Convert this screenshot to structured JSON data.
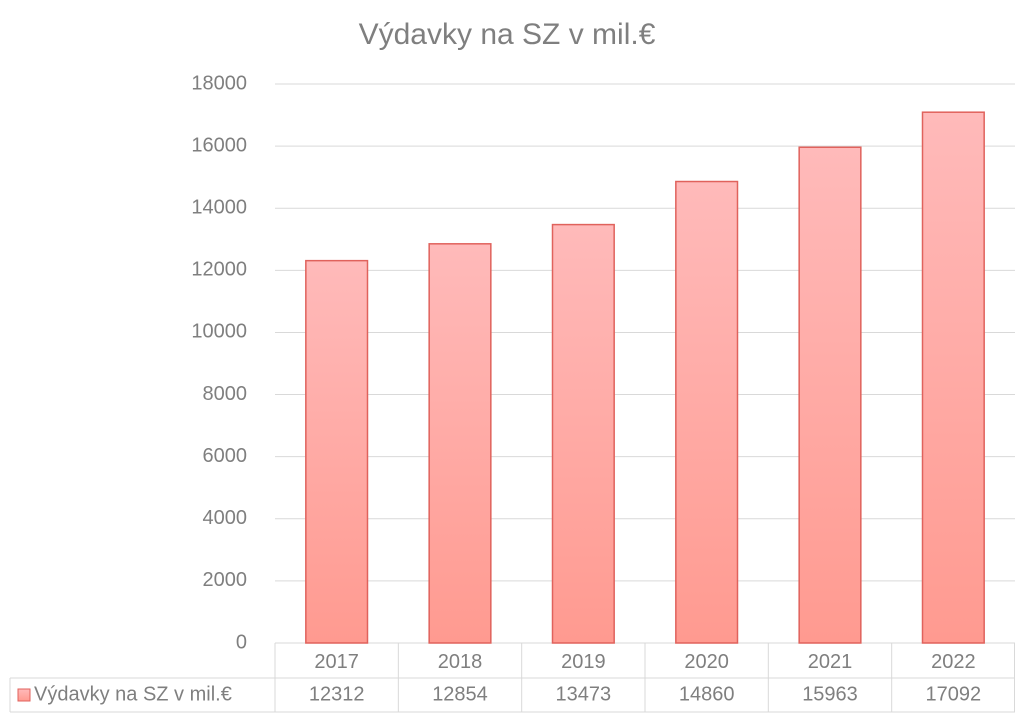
{
  "chart_data": {
    "type": "bar",
    "title": "Výdavky na SZ v mil.€",
    "categories": [
      "2017",
      "2018",
      "2019",
      "2020",
      "2021",
      "2022"
    ],
    "series": [
      {
        "name": "Výdavky na SZ v mil.€",
        "color": "#ff9f97",
        "values": [
          12312,
          12854,
          13473,
          14860,
          15963,
          17092
        ]
      }
    ],
    "ylim": [
      0,
      18000
    ],
    "yticks": [
      0,
      2000,
      4000,
      6000,
      8000,
      10000,
      12000,
      14000,
      16000,
      18000
    ],
    "grid": true,
    "data_table": true
  }
}
